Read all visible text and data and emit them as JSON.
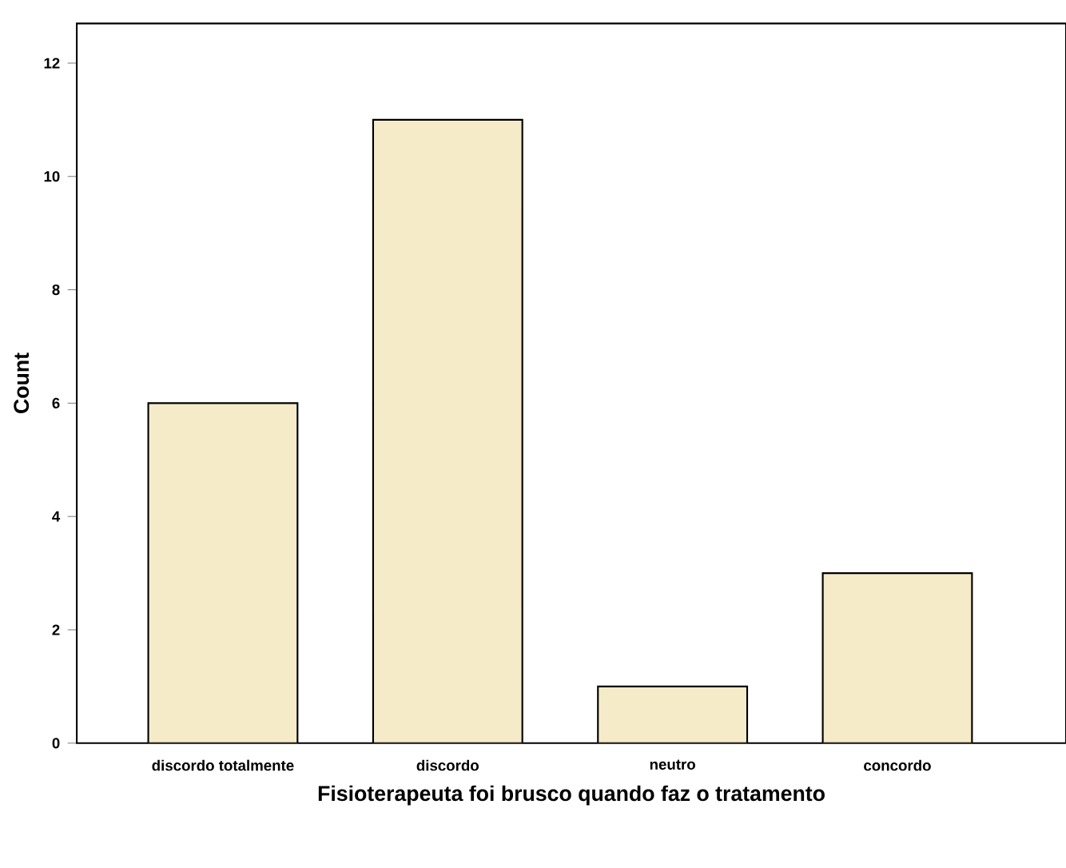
{
  "chart_data": {
    "type": "bar",
    "xlabel": "Fisioterapeuta foi brusco quando faz o tratamento",
    "ylabel": "Count",
    "categories": [
      "discordo totalmente",
      "discordo",
      "neutro",
      "concordo"
    ],
    "values": [
      6,
      11,
      1,
      3
    ],
    "color": "#f5ebc8",
    "ylim": [
      0,
      12.7
    ],
    "yticks": [
      0,
      2,
      4,
      6,
      8,
      10,
      12
    ],
    "grid": false
  }
}
